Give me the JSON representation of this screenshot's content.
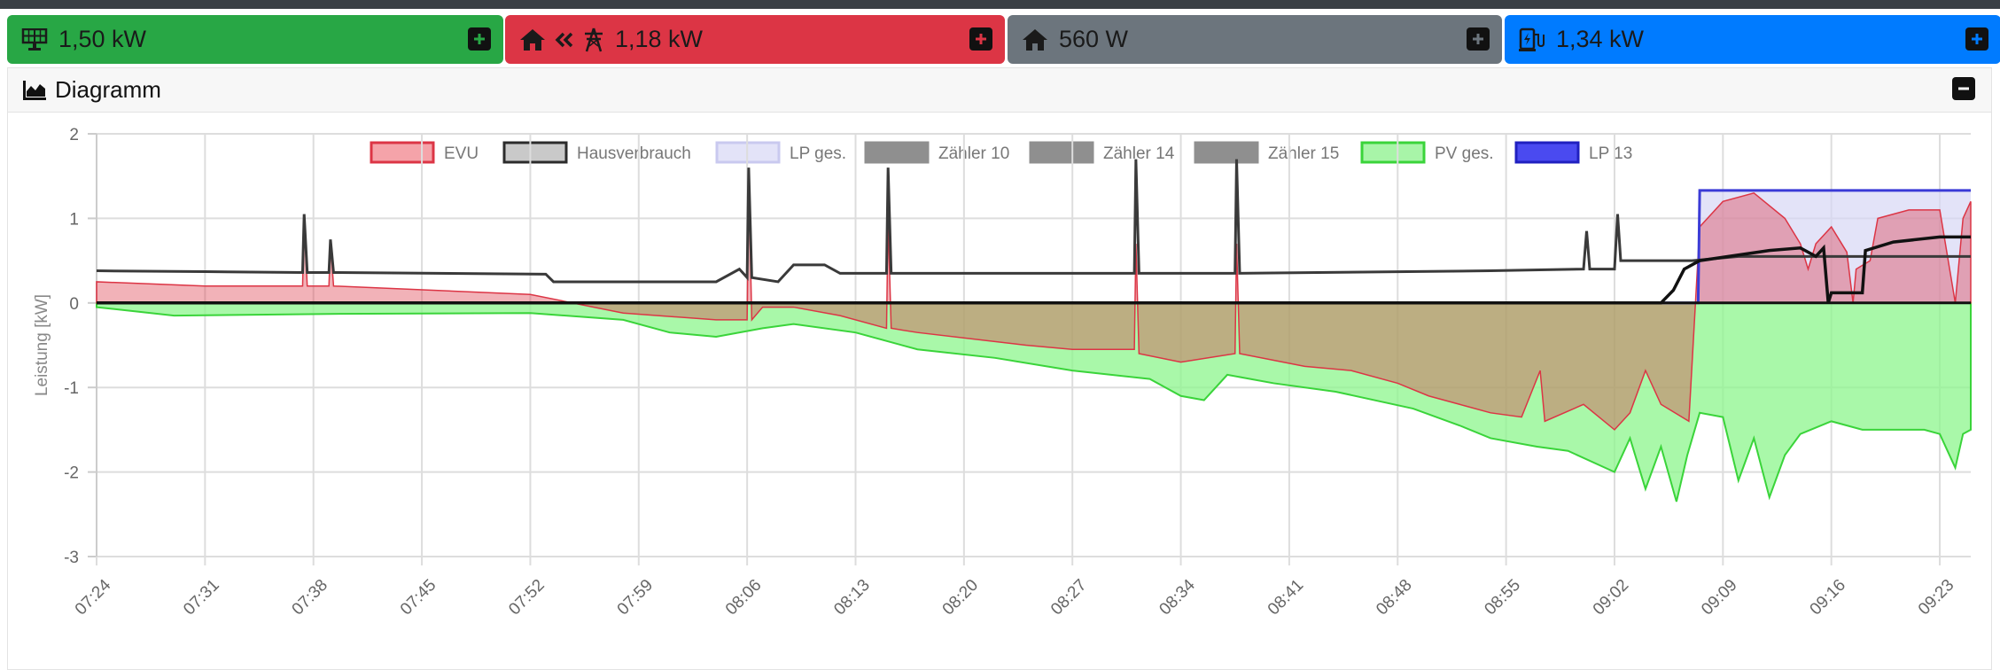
{
  "tiles": {
    "pv": {
      "value": "1,50 kW",
      "icon": "solar-panel-icon",
      "color": "#28a745"
    },
    "evu": {
      "value": "1,18 kW",
      "icon": "grid-import-icon",
      "color": "#dc3545"
    },
    "haus": {
      "value": "560 W",
      "icon": "house-icon",
      "color": "#6c757d"
    },
    "lp": {
      "value": "1,34 kW",
      "icon": "charging-station-icon",
      "color": "#007bff"
    }
  },
  "panel": {
    "title": "Diagramm",
    "icon": "area-chart-icon"
  },
  "chart_data": {
    "type": "area",
    "ylabel": "Leistung [kW]",
    "ylim": [
      -3,
      2
    ],
    "yticks": [
      "2",
      "1",
      "0",
      "-1",
      "-2",
      "-3"
    ],
    "xticks": [
      "07:24",
      "07:31",
      "07:38",
      "07:45",
      "07:52",
      "07:59",
      "08:06",
      "08:13",
      "08:20",
      "08:27",
      "08:34",
      "08:41",
      "08:48",
      "08:55",
      "09:02",
      "09:09",
      "09:16",
      "09:23"
    ],
    "grid": true,
    "legend_position": "top",
    "legend": [
      {
        "name": "EVU",
        "color": "#f5a3a9",
        "border": "#dc3545"
      },
      {
        "name": "Hausverbrauch",
        "color": "#c9c9c9",
        "border": "#2b2b2b"
      },
      {
        "name": "LP ges.",
        "color": "#e3e3f8",
        "border": "#c9c9ef"
      },
      {
        "name": "Zähler 10",
        "color": "#8f8f8f",
        "border": "#8f8f8f"
      },
      {
        "name": "Zähler 14",
        "color": "#8f8f8f",
        "border": "#8f8f8f"
      },
      {
        "name": "Zähler 15",
        "color": "#8f8f8f",
        "border": "#8f8f8f"
      },
      {
        "name": "PV ges.",
        "color": "#a8f5a8",
        "border": "#3ad43a"
      },
      {
        "name": "LP 13",
        "color": "#4a4af0",
        "border": "#2020c0"
      }
    ],
    "x_start": "07:24",
    "series": [
      {
        "name": "EVU",
        "values": [
          [
            0,
            0.25
          ],
          [
            7,
            0.2
          ],
          [
            13.3,
            0.2
          ],
          [
            13.4,
            1.0
          ],
          [
            13.6,
            0.2
          ],
          [
            15.0,
            0.2
          ],
          [
            15.1,
            0.7
          ],
          [
            15.3,
            0.2
          ],
          [
            28,
            0.1
          ],
          [
            34,
            -0.12
          ],
          [
            40,
            -0.2
          ],
          [
            42.0,
            -0.2
          ],
          [
            42.1,
            1.5
          ],
          [
            42.3,
            -0.2
          ],
          [
            43,
            -0.05
          ],
          [
            45,
            -0.05
          ],
          [
            48,
            -0.15
          ],
          [
            51.0,
            -0.3
          ],
          [
            51.1,
            1.0
          ],
          [
            51.3,
            -0.3
          ],
          [
            53,
            -0.35
          ],
          [
            60,
            -0.5
          ],
          [
            63,
            -0.55
          ],
          [
            67.0,
            -0.55
          ],
          [
            67.1,
            0.7
          ],
          [
            67.3,
            -0.6
          ],
          [
            70,
            -0.7
          ],
          [
            73.5,
            -0.6
          ],
          [
            73.6,
            0.7
          ],
          [
            73.8,
            -0.6
          ],
          [
            78,
            -0.75
          ],
          [
            81,
            -0.8
          ],
          [
            84,
            -0.95
          ],
          [
            86,
            -1.1
          ],
          [
            88,
            -1.2
          ],
          [
            90,
            -1.3
          ],
          [
            92,
            -1.35
          ],
          [
            93.2,
            -0.8
          ],
          [
            93.5,
            -1.4
          ],
          [
            96,
            -1.2
          ],
          [
            98,
            -1.5
          ],
          [
            99,
            -1.3
          ],
          [
            100,
            -0.8
          ],
          [
            101,
            -1.2
          ],
          [
            102.8,
            -1.4
          ],
          [
            103.5,
            0.9
          ],
          [
            105,
            1.2
          ],
          [
            107,
            1.3
          ],
          [
            109,
            1.0
          ],
          [
            110,
            0.7
          ],
          [
            110.5,
            0.4
          ],
          [
            111,
            0.7
          ],
          [
            112,
            0.9
          ],
          [
            113,
            0.6
          ],
          [
            113.4,
            0.0
          ],
          [
            113.6,
            0.4
          ],
          [
            114.5,
            0.5
          ],
          [
            115,
            1.0
          ],
          [
            117,
            1.1
          ],
          [
            119,
            1.1
          ],
          [
            120,
            0.0
          ],
          [
            120.5,
            1.0
          ],
          [
            121,
            1.2
          ]
        ]
      },
      {
        "name": "Hausverbrauch",
        "values": [
          [
            0,
            0.38
          ],
          [
            7,
            0.37
          ],
          [
            13.3,
            0.36
          ],
          [
            13.4,
            1.05
          ],
          [
            13.6,
            0.36
          ],
          [
            15.0,
            0.36
          ],
          [
            15.1,
            0.75
          ],
          [
            15.3,
            0.36
          ],
          [
            29,
            0.34
          ],
          [
            29.5,
            0.25
          ],
          [
            40,
            0.25
          ],
          [
            41.5,
            0.4
          ],
          [
            42.0,
            0.3
          ],
          [
            42.1,
            1.6
          ],
          [
            42.3,
            0.3
          ],
          [
            44,
            0.25
          ],
          [
            45,
            0.45
          ],
          [
            47,
            0.45
          ],
          [
            48,
            0.35
          ],
          [
            51.0,
            0.35
          ],
          [
            51.1,
            1.6
          ],
          [
            51.3,
            0.35
          ],
          [
            60,
            0.35
          ],
          [
            67.0,
            0.35
          ],
          [
            67.1,
            1.7
          ],
          [
            67.3,
            0.35
          ],
          [
            73.5,
            0.35
          ],
          [
            73.6,
            1.7
          ],
          [
            73.8,
            0.35
          ],
          [
            90,
            0.38
          ],
          [
            96,
            0.4
          ],
          [
            96.2,
            0.85
          ],
          [
            96.4,
            0.4
          ],
          [
            98,
            0.4
          ],
          [
            98.2,
            1.05
          ],
          [
            98.4,
            0.5
          ],
          [
            103,
            0.5
          ],
          [
            106,
            0.55
          ],
          [
            110,
            0.55
          ],
          [
            113,
            0.55
          ],
          [
            116,
            0.55
          ],
          [
            119,
            0.55
          ],
          [
            121,
            0.55
          ]
        ]
      },
      {
        "name": "LP ges.",
        "values": [
          [
            0,
            0
          ],
          [
            103.4,
            0
          ],
          [
            103.5,
            1.33
          ],
          [
            121,
            1.33
          ]
        ]
      },
      {
        "name": "PV ges.",
        "values": [
          [
            0,
            -0.05
          ],
          [
            5,
            -0.15
          ],
          [
            15,
            -0.13
          ],
          [
            28,
            -0.12
          ],
          [
            34,
            -0.2
          ],
          [
            37,
            -0.35
          ],
          [
            40,
            -0.4
          ],
          [
            43,
            -0.3
          ],
          [
            45,
            -0.25
          ],
          [
            49,
            -0.35
          ],
          [
            53,
            -0.55
          ],
          [
            58,
            -0.65
          ],
          [
            63,
            -0.8
          ],
          [
            68,
            -0.9
          ],
          [
            70,
            -1.1
          ],
          [
            71.5,
            -1.15
          ],
          [
            73,
            -0.85
          ],
          [
            76,
            -0.95
          ],
          [
            80,
            -1.05
          ],
          [
            85,
            -1.25
          ],
          [
            88,
            -1.45
          ],
          [
            90,
            -1.6
          ],
          [
            93,
            -1.7
          ],
          [
            95,
            -1.75
          ],
          [
            98,
            -2.0
          ],
          [
            99,
            -1.6
          ],
          [
            100,
            -2.2
          ],
          [
            101,
            -1.7
          ],
          [
            102,
            -2.35
          ],
          [
            102.7,
            -1.8
          ],
          [
            103.5,
            -1.3
          ],
          [
            105,
            -1.35
          ],
          [
            106,
            -2.1
          ],
          [
            107,
            -1.6
          ],
          [
            108,
            -2.3
          ],
          [
            109,
            -1.8
          ],
          [
            110,
            -1.55
          ],
          [
            112,
            -1.4
          ],
          [
            114,
            -1.5
          ],
          [
            116,
            -1.5
          ],
          [
            118,
            -1.5
          ],
          [
            119,
            -1.55
          ],
          [
            120,
            -1.95
          ],
          [
            120.5,
            -1.55
          ],
          [
            121,
            -1.5
          ]
        ]
      },
      {
        "name": "LP 13",
        "values": [
          [
            0,
            0
          ],
          [
            101,
            0
          ],
          [
            101.8,
            0.15
          ],
          [
            102.5,
            0.4
          ],
          [
            103.5,
            0.5
          ],
          [
            108,
            0.62
          ],
          [
            110,
            0.65
          ],
          [
            111,
            0.55
          ],
          [
            111.5,
            0.65
          ],
          [
            111.8,
            0.0
          ],
          [
            112,
            0.12
          ],
          [
            114,
            0.12
          ],
          [
            114.2,
            0.62
          ],
          [
            116,
            0.72
          ],
          [
            119,
            0.78
          ],
          [
            121,
            0.78
          ]
        ]
      }
    ]
  }
}
